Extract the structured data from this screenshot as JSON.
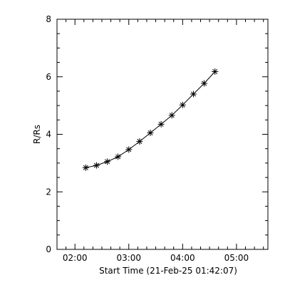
{
  "chart_data": {
    "type": "line",
    "xlabel": "Start Time (21-Feb-25 01:42:07)",
    "ylabel": "R/Rs",
    "xlim": [
      "01:40",
      "05:35"
    ],
    "ylim": [
      0,
      8
    ],
    "x_ticks": [
      "02:00",
      "03:00",
      "04:00",
      "05:00"
    ],
    "y_ticks": [
      0,
      2,
      4,
      6,
      8
    ],
    "marker": "asterisk",
    "grid": false,
    "x": [
      "02:12",
      "02:24",
      "02:36",
      "02:48",
      "03:00",
      "03:12",
      "03:24",
      "03:36",
      "03:48",
      "04:00",
      "04:12",
      "04:24",
      "04:36"
    ],
    "y": [
      2.84,
      2.92,
      3.05,
      3.22,
      3.47,
      3.75,
      4.05,
      4.35,
      4.66,
      5.02,
      5.4,
      5.77,
      6.18
    ]
  }
}
